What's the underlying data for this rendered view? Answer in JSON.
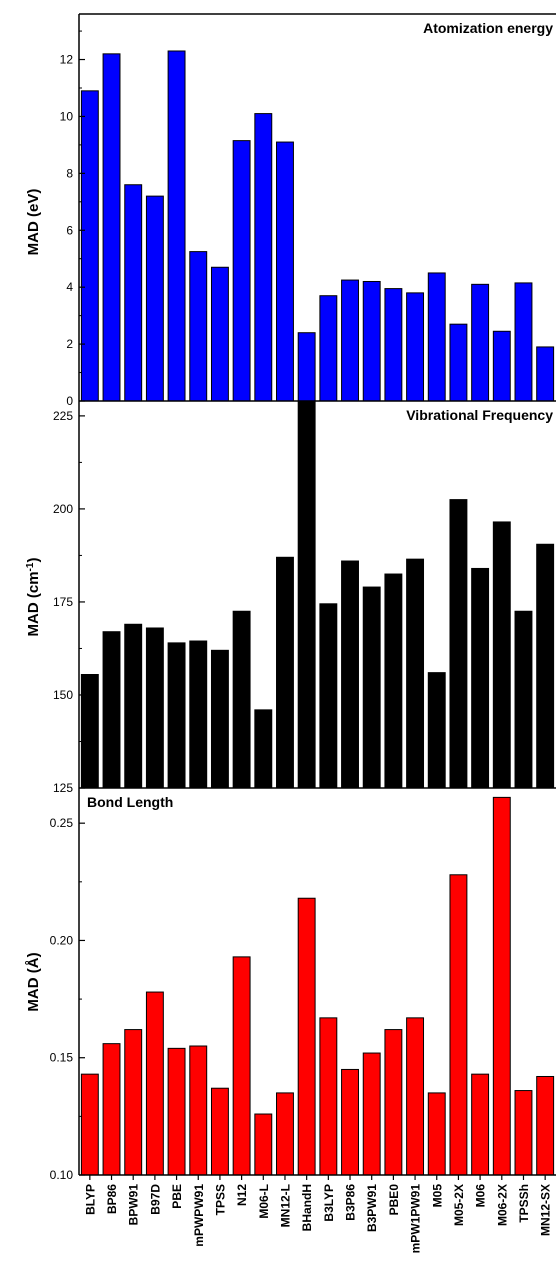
{
  "chart_data": [
    {
      "type": "bar",
      "title": "Atomization energy",
      "ylabel": "MAD (eV)",
      "ylim": [
        0,
        13.6
      ],
      "yticks": [
        0,
        2,
        4,
        6,
        8,
        10,
        12
      ],
      "color": "#0000ff",
      "categories": [
        "BLYP",
        "BP86",
        "BPW91",
        "B97D",
        "PBE",
        "mPWPW91",
        "TPSS",
        "N12",
        "M06-L",
        "MN12-L",
        "BHandH",
        "B3LYP",
        "B3P86",
        "B3PW91",
        "PBE0",
        "mPW1PW91",
        "M05",
        "M05-2X",
        "M06",
        "M06-2X",
        "TPSSh",
        "MN12-SX"
      ],
      "values": [
        10.9,
        12.2,
        7.6,
        7.2,
        12.3,
        5.25,
        4.7,
        9.15,
        10.1,
        9.1,
        2.4,
        3.7,
        4.25,
        4.2,
        3.95,
        3.8,
        4.5,
        2.7,
        4.1,
        2.45,
        4.15,
        1.9
      ]
    },
    {
      "type": "bar",
      "title": "Vibrational Frequency",
      "ylabel": "MAD (cm",
      "ylabel_sup": "-1",
      "ylabel_end": ")",
      "ylim": [
        125,
        229
      ],
      "yticks": [
        125,
        150,
        175,
        200,
        225
      ],
      "color": "#000000",
      "categories": [
        "BLYP",
        "BP86",
        "BPW91",
        "B97D",
        "PBE",
        "mPWPW91",
        "TPSS",
        "N12",
        "M06-L",
        "MN12-L",
        "BHandH",
        "B3LYP",
        "B3P86",
        "B3PW91",
        "PBE0",
        "mPW1PW91",
        "M05",
        "M05-2X",
        "M06",
        "M06-2X",
        "TPSSh",
        "MN12-SX"
      ],
      "values": [
        155.5,
        167,
        169,
        168,
        164,
        164.5,
        162,
        172.5,
        146,
        187,
        229,
        174.5,
        186,
        179,
        182.5,
        186.5,
        156,
        202.5,
        184,
        196.5,
        172.5,
        190.5
      ]
    },
    {
      "type": "bar",
      "title": "Bond Length",
      "ylabel": "MAD (Å)",
      "ylim": [
        0.1,
        0.265
      ],
      "yticks": [
        0.1,
        0.15,
        0.2,
        0.25
      ],
      "ytick_labels": [
        "0.10",
        "0.15",
        "0.20",
        "0.25"
      ],
      "color": "#ff0000",
      "categories": [
        "BLYP",
        "BP86",
        "BPW91",
        "B97D",
        "PBE",
        "mPWPW91",
        "TPSS",
        "N12",
        "M06-L",
        "MN12-L",
        "BHandH",
        "B3LYP",
        "B3P86",
        "B3PW91",
        "PBE0",
        "mPW1PW91",
        "M05",
        "M05-2X",
        "M06",
        "M06-2X",
        "TPSSh",
        "MN12-SX"
      ],
      "values": [
        0.143,
        0.156,
        0.162,
        0.178,
        0.154,
        0.155,
        0.137,
        0.193,
        0.126,
        0.135,
        0.218,
        0.167,
        0.145,
        0.152,
        0.162,
        0.167,
        0.135,
        0.228,
        0.143,
        0.261,
        0.136,
        0.142
      ]
    }
  ]
}
